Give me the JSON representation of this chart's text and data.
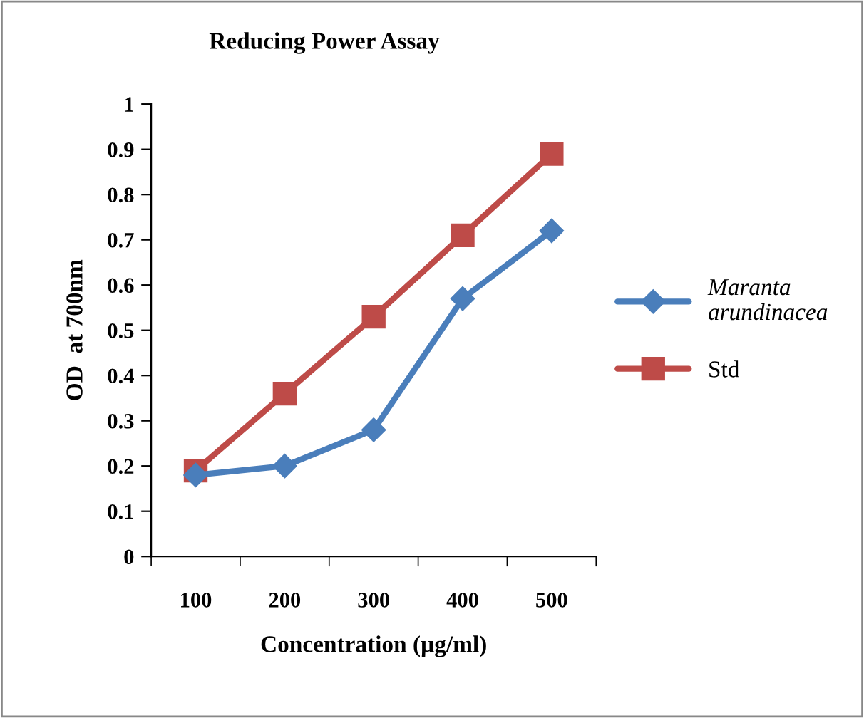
{
  "chart_data": {
    "type": "line",
    "title": "Reducing Power Assay",
    "xlabel": "Concentration (µg/ml)",
    "ylabel": "OD  at 700nm",
    "categories": [
      "100",
      "200",
      "300",
      "400",
      "500"
    ],
    "series": [
      {
        "name": "Maranta\narundinacea",
        "color": "#4a7ebb",
        "marker": "diamond",
        "values": [
          0.18,
          0.2,
          0.28,
          0.57,
          0.72
        ]
      },
      {
        "name": "Std",
        "color": "#be4b48",
        "marker": "square",
        "values": [
          0.19,
          0.36,
          0.53,
          0.71,
          0.89
        ]
      }
    ],
    "ylim": [
      0,
      1
    ],
    "yticks": [
      0,
      0.1,
      0.2,
      0.3,
      0.4,
      0.5,
      0.6,
      0.7,
      0.8,
      0.9,
      1
    ],
    "grid": false,
    "legend": "right",
    "line_style": "solid"
  }
}
